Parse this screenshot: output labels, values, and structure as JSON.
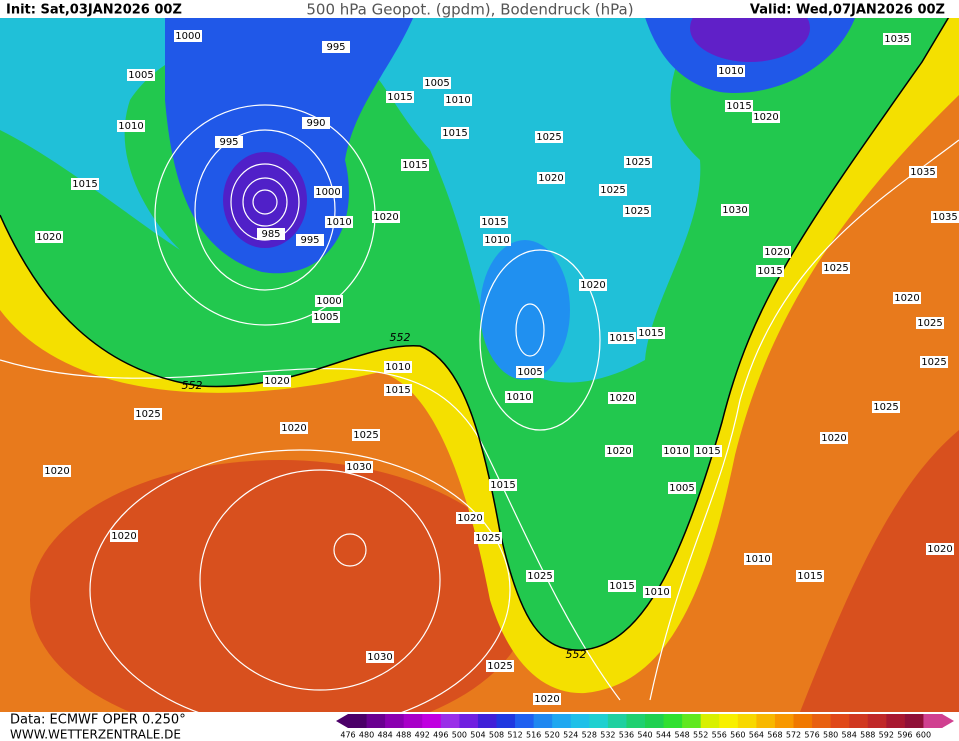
{
  "header": {
    "init": "Init: Sat,03JAN2026 00Z",
    "title": "500 hPa Geopot. (gpdm), Bodendruck (hPa)",
    "valid": "Valid: Wed,07JAN2026 00Z"
  },
  "footer": {
    "source": "Data: ECMWF OPER 0.250°",
    "site": "WWW.WETTERZENTRALE.DE"
  },
  "labels": [
    1000,
    995,
    1005,
    1010,
    995,
    990,
    1015,
    1000,
    985,
    1010,
    995,
    1020,
    1020,
    1000,
    1005,
    552,
    552,
    1020,
    1010,
    1015,
    1025,
    1020,
    1025,
    1020,
    1030,
    1020,
    1015,
    1020,
    1025,
    1030,
    1025,
    1020,
    1025,
    1015,
    1010,
    552,
    1005,
    1010,
    1015,
    1015,
    1025,
    1015,
    1020,
    1015,
    1010,
    1020,
    1015,
    1015,
    1005,
    1010,
    1020,
    1020,
    1010,
    1015,
    1005,
    1025,
    1025,
    1025,
    1030,
    1010,
    1015,
    1020,
    1035,
    1035,
    1035,
    1020,
    1015,
    1025,
    1020,
    1025,
    1025,
    1025,
    1020,
    1010,
    1015,
    1020
  ],
  "legend": {
    "labels": [
      476,
      480,
      484,
      488,
      492,
      496,
      500,
      504,
      508,
      512,
      516,
      520,
      524,
      528,
      532,
      536,
      540,
      544,
      548,
      552,
      556,
      560,
      564,
      568,
      572,
      576,
      580,
      584,
      588,
      592,
      596,
      600
    ],
    "colors": [
      "#4b0068",
      "#6a0090",
      "#8a00b0",
      "#a800c8",
      "#c000e0",
      "#9a30e8",
      "#7020e0",
      "#4020d8",
      "#2038e0",
      "#2060f0",
      "#2088f0",
      "#20a8f0",
      "#20c0e8",
      "#20d0d0",
      "#20d0a0",
      "#20d070",
      "#20d050",
      "#30e030",
      "#60e820",
      "#d8f000",
      "#f8f000",
      "#f8d800",
      "#f8b800",
      "#f89800",
      "#f07800",
      "#e86010",
      "#e04818",
      "#d03820",
      "#c02828",
      "#a81830",
      "#901038",
      "#d04090"
    ]
  }
}
